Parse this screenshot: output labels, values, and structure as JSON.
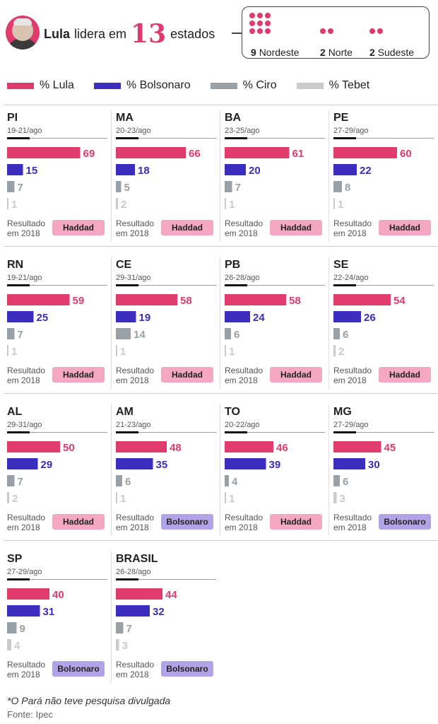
{
  "header": {
    "headline_pre": "Lula",
    "headline_mid": "lidera em",
    "headline_num": "13",
    "headline_post": "estados",
    "regions": [
      {
        "count": "9",
        "label": "Nordeste",
        "dots": 9
      },
      {
        "count": "2",
        "label": "Norte",
        "dots": 2
      },
      {
        "count": "2",
        "label": "Sudeste",
        "dots": 2
      }
    ]
  },
  "colors": {
    "lula": "#e03b6d",
    "bolsonaro": "#3b2dbe",
    "ciro": "#99a0a6",
    "tebet": "#c8cacc",
    "haddad_badge": "#f3a7c0",
    "bolsonaro_badge": "#b0a4e6"
  },
  "legend": [
    "% Lula",
    "% Bolsonaro",
    "% Ciro",
    "% Tebet"
  ],
  "result_label": "Resultado em 2018",
  "chart_data": {
    "type": "bar",
    "series_names": [
      "% Lula",
      "% Bolsonaro",
      "% Ciro",
      "% Tebet"
    ],
    "panels": [
      {
        "state": "PI",
        "dates": "19-21/ago",
        "values": [
          69,
          15,
          7,
          1
        ],
        "result_2018": "Haddad"
      },
      {
        "state": "MA",
        "dates": "20-23/ago",
        "values": [
          66,
          18,
          5,
          2
        ],
        "result_2018": "Haddad"
      },
      {
        "state": "BA",
        "dates": "23-25/ago",
        "values": [
          61,
          20,
          7,
          1
        ],
        "result_2018": "Haddad"
      },
      {
        "state": "PE",
        "dates": "27-29/ago",
        "values": [
          60,
          22,
          8,
          1
        ],
        "result_2018": "Haddad"
      },
      {
        "state": "RN",
        "dates": "19-21/ago",
        "values": [
          59,
          25,
          7,
          1
        ],
        "result_2018": "Haddad"
      },
      {
        "state": "CE",
        "dates": "29-31/ago",
        "values": [
          58,
          19,
          14,
          1
        ],
        "result_2018": "Haddad"
      },
      {
        "state": "PB",
        "dates": "26-28/ago",
        "values": [
          58,
          24,
          6,
          1
        ],
        "result_2018": "Haddad"
      },
      {
        "state": "SE",
        "dates": "22-24/ago",
        "values": [
          54,
          26,
          6,
          2
        ],
        "result_2018": "Haddad"
      },
      {
        "state": "AL",
        "dates": "29-31/ago",
        "values": [
          50,
          29,
          7,
          2
        ],
        "result_2018": "Haddad"
      },
      {
        "state": "AM",
        "dates": "21-23/ago",
        "values": [
          48,
          35,
          6,
          1
        ],
        "result_2018": "Bolsonaro"
      },
      {
        "state": "TO",
        "dates": "20-22/ago",
        "values": [
          46,
          39,
          4,
          1
        ],
        "result_2018": "Haddad"
      },
      {
        "state": "MG",
        "dates": "27-29/ago",
        "values": [
          45,
          30,
          6,
          3
        ],
        "result_2018": "Bolsonaro"
      },
      {
        "state": "SP",
        "dates": "27-29/ago",
        "values": [
          40,
          31,
          9,
          4
        ],
        "result_2018": "Bolsonaro"
      },
      {
        "state": "BRASIL",
        "dates": "26-28/ago",
        "values": [
          44,
          32,
          7,
          3
        ],
        "result_2018": "Bolsonaro"
      }
    ]
  },
  "footer": {
    "note": "*O Pará não teve pesquisa divulgada",
    "source": "Fonte: Ipec"
  }
}
